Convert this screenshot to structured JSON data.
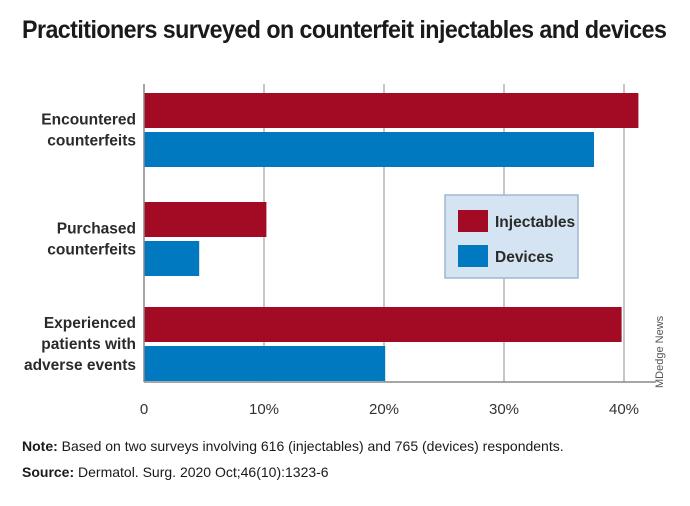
{
  "title": "Practitioners surveyed on counterfeit injectables and devices",
  "chart_data": {
    "type": "bar",
    "orientation": "horizontal",
    "categories": [
      [
        "Encountered",
        "counterfeits"
      ],
      [
        "Purchased",
        "counterfeits"
      ],
      [
        "Experienced",
        "patients with",
        "adverse events"
      ]
    ],
    "series": [
      {
        "name": "Injectables",
        "color": "#a30a23",
        "values": [
          41.2,
          10.2,
          39.8
        ]
      },
      {
        "name": "Devices",
        "color": "#0079c1",
        "values": [
          37.5,
          4.6,
          20.1
        ]
      }
    ],
    "xlim": [
      0,
      42
    ],
    "xticks": [
      0,
      10,
      20,
      30,
      40
    ],
    "xtick_labels": [
      "0",
      "10%",
      "20%",
      "30%",
      "40%"
    ],
    "grid": "vertical",
    "legend_placement": "center-right"
  },
  "note": {
    "label": "Note:",
    "text": " Based on two surveys involving 616 (injectables) and 765 (devices) respondents."
  },
  "source": {
    "label": "Source:",
    "text": " Dermatol. Surg. 2020 Oct;46(10):1323-6"
  },
  "credit": "MDedge News"
}
